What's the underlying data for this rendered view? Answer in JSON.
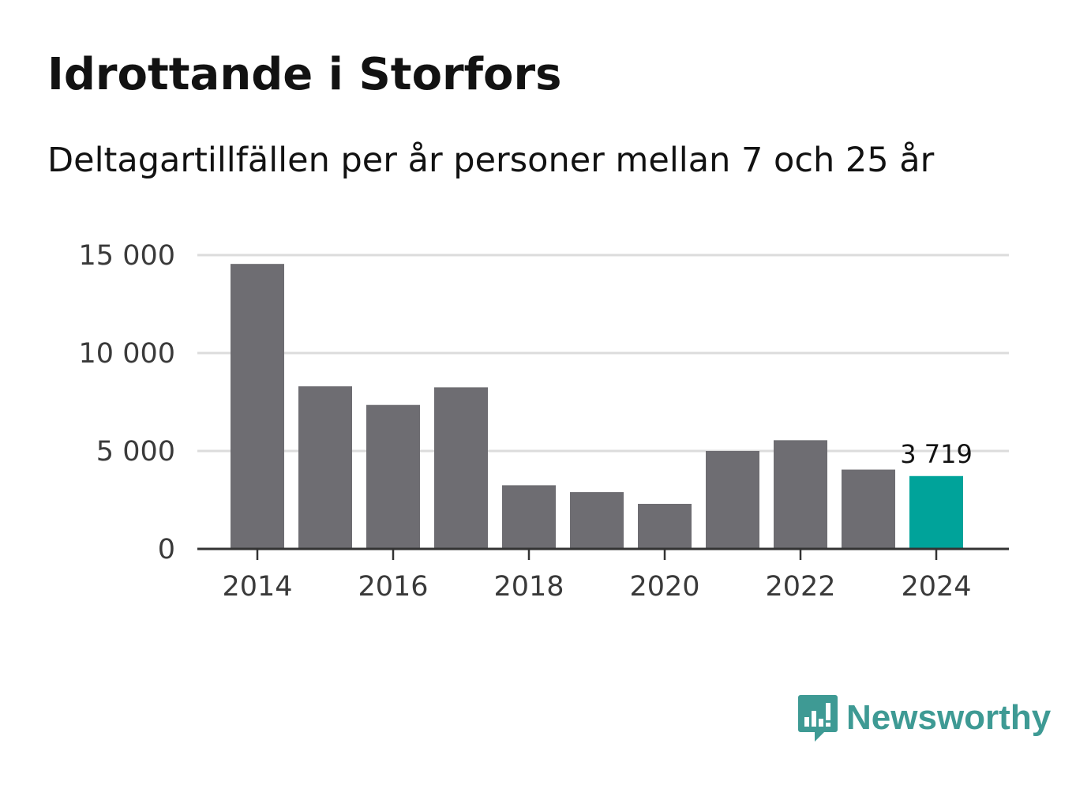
{
  "title": "Idrottande i Storfors",
  "subtitle": "Deltagartillfällen per år personer mellan 7 och 25 år",
  "brand": {
    "name": "Newsworthy",
    "icon": "newsworthy-logo-icon",
    "color": "#3e9a94"
  },
  "colors": {
    "bar": "#6e6d72",
    "highlight": "#00a39a",
    "grid": "#dcdcdc",
    "axis": "#333333"
  },
  "chart_data": {
    "type": "bar",
    "title": "Idrottande i Storfors",
    "subtitle": "Deltagartillfällen per år personer mellan 7 och 25 år",
    "xlabel": "",
    "ylabel": "",
    "categories": [
      "2014",
      "2015",
      "2016",
      "2017",
      "2018",
      "2019",
      "2020",
      "2021",
      "2022",
      "2023",
      "2024"
    ],
    "values": [
      14550,
      8300,
      7350,
      8250,
      3250,
      2900,
      2300,
      5000,
      5550,
      4050,
      3719
    ],
    "highlight_index": 10,
    "highlight_label": "3 719",
    "ylim": [
      0,
      15000
    ],
    "yticks": [
      0,
      5000,
      10000,
      15000
    ],
    "ytick_labels": [
      "0",
      "5 000",
      "10 000",
      "15 000"
    ],
    "xtick_labels": [
      "2014",
      "2016",
      "2018",
      "2020",
      "2022",
      "2024"
    ],
    "grid": true
  }
}
